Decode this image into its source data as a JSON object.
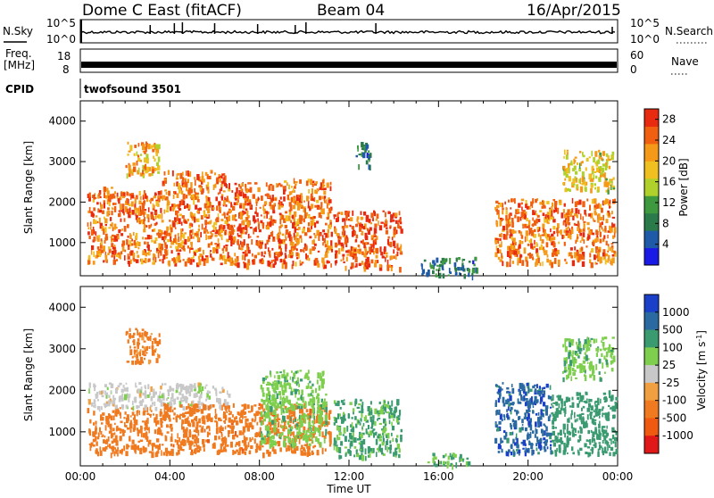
{
  "header": {
    "station": "Dome C East (fitACF)",
    "beam": "Beam 04",
    "date": "16/Apr/2015"
  },
  "strips": {
    "nsky_label": "N.Sky",
    "nsky_ticks": [
      "10^5",
      "10^0"
    ],
    "nsearch_label": "N.Search",
    "nsearch_ticks": [
      "10^5",
      "10^0"
    ],
    "freq_label": "Freq.",
    "freq_unit": "[MHz]",
    "freq_ticks": [
      "8",
      "18"
    ],
    "nave_label": "Nave",
    "nave_ticks": [
      "60",
      "0"
    ],
    "cpid_label": "CPID",
    "cpid_value": "twofsound 3501"
  },
  "chart_data": [
    {
      "type": "heatmap",
      "title": "",
      "quantity": "Power",
      "xlabel": "Time UT",
      "ylabel": "Slant Range [km]",
      "xlim": [
        "00:00",
        "24:00"
      ],
      "ylim": [
        180,
        4500
      ],
      "x_ticks": [
        "00:00",
        "04:00",
        "08:00",
        "12:00",
        "16:00",
        "20:00",
        "00:00"
      ],
      "y_ticks": [
        1000,
        2000,
        3000,
        4000
      ],
      "colorbar": {
        "label": "Power [dB]",
        "range": [
          0,
          30
        ],
        "ticks": [
          4,
          8,
          12,
          16,
          20,
          24,
          28
        ],
        "colors": [
          "#1a1ae6",
          "#1e5aa8",
          "#2a7a4a",
          "#3f9a3f",
          "#b0d02c",
          "#f0c020",
          "#f59a18",
          "#f06010",
          "#e82a10"
        ]
      },
      "regions": [
        {
          "t": [
            0.3,
            1.5
          ],
          "r": [
            500,
            2400
          ],
          "value": 24
        },
        {
          "t": [
            1.5,
            3.6
          ],
          "r": [
            500,
            2300
          ],
          "value": 24
        },
        {
          "t": [
            2.0,
            3.5
          ],
          "r": [
            2700,
            3500
          ],
          "value": 20
        },
        {
          "t": [
            3.6,
            6.6
          ],
          "r": [
            500,
            2800
          ],
          "value": 24
        },
        {
          "t": [
            6.6,
            9.0
          ],
          "r": [
            450,
            2500
          ],
          "value": 26
        },
        {
          "t": [
            9.0,
            11.2
          ],
          "r": [
            450,
            2600
          ],
          "value": 24
        },
        {
          "t": [
            11.3,
            14.3
          ],
          "r": [
            400,
            1800
          ],
          "value": 26
        },
        {
          "t": [
            12.3,
            13.0
          ],
          "r": [
            2900,
            3500
          ],
          "value": 8
        },
        {
          "t": [
            15.2,
            17.7
          ],
          "r": [
            200,
            650
          ],
          "value": 8
        },
        {
          "t": [
            18.5,
            23.9
          ],
          "r": [
            500,
            2100
          ],
          "value": 24
        },
        {
          "t": [
            21.5,
            23.8
          ],
          "r": [
            2300,
            3300
          ],
          "value": 18
        }
      ]
    },
    {
      "type": "heatmap",
      "title": "",
      "quantity": "Velocity",
      "xlabel": "Time UT",
      "ylabel": "Slant Range [km]",
      "xlim": [
        "00:00",
        "24:00"
      ],
      "ylim": [
        180,
        4500
      ],
      "x_ticks": [
        "00:00",
        "04:00",
        "08:00",
        "12:00",
        "16:00",
        "20:00",
        "00:00"
      ],
      "y_ticks": [
        1000,
        2000,
        3000,
        4000
      ],
      "colorbar": {
        "label": "Velocity [m s^-1]",
        "tick_labels": [
          "1000",
          "500",
          "100",
          "25",
          "-25",
          "-100",
          "-500",
          "-1000"
        ],
        "colors": [
          "#1a3fc8",
          "#2a6aa0",
          "#3a9a70",
          "#7fcf4f",
          "#c8c8c8",
          "#f0a040",
          "#f07a20",
          "#f05a10",
          "#e01818"
        ]
      },
      "regions": [
        {
          "t": [
            0.3,
            3.6
          ],
          "r": [
            500,
            1600
          ],
          "value": -300
        },
        {
          "t": [
            0.3,
            6.6
          ],
          "r": [
            1600,
            2200
          ],
          "value": 0
        },
        {
          "t": [
            2.0,
            3.5
          ],
          "r": [
            2700,
            3500
          ],
          "value": -150
        },
        {
          "t": [
            3.6,
            11.2
          ],
          "r": [
            500,
            1700
          ],
          "value": -350
        },
        {
          "t": [
            8.0,
            11.0
          ],
          "r": [
            700,
            2500
          ],
          "value": 80
        },
        {
          "t": [
            11.3,
            14.3
          ],
          "r": [
            400,
            1800
          ],
          "value": 120
        },
        {
          "t": [
            15.5,
            17.3
          ],
          "r": [
            200,
            500
          ],
          "value": 100
        },
        {
          "t": [
            18.5,
            21.0
          ],
          "r": [
            500,
            2200
          ],
          "value": 800
        },
        {
          "t": [
            21.0,
            23.9
          ],
          "r": [
            500,
            2000
          ],
          "value": 300
        },
        {
          "t": [
            21.5,
            23.8
          ],
          "r": [
            2300,
            3300
          ],
          "value": 80
        }
      ]
    }
  ]
}
